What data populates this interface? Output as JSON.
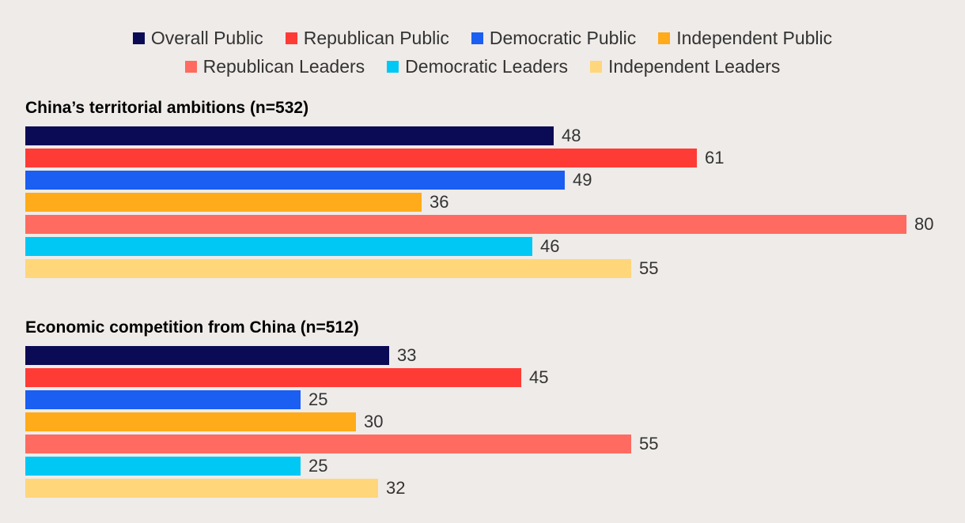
{
  "chart_data": {
    "type": "bar",
    "orientation": "horizontal",
    "legend_position": "top-center",
    "series": [
      {
        "name": "Overall Public",
        "color": "#0b0b55"
      },
      {
        "name": "Republican Public",
        "color": "#ff3b36"
      },
      {
        "name": "Democratic Public",
        "color": "#1a5ef2"
      },
      {
        "name": "Independent Public",
        "color": "#ffab1a"
      },
      {
        "name": "Republican Leaders",
        "color": "#ff6b60"
      },
      {
        "name": "Democratic Leaders",
        "color": "#00c8f5"
      },
      {
        "name": "Independent Leaders",
        "color": "#ffd67a"
      }
    ],
    "groups": [
      {
        "title": "China’s territorial ambitions (n=532)",
        "values": [
          48,
          61,
          49,
          36,
          80,
          46,
          55
        ]
      },
      {
        "title": "Economic competition from China (n=512)",
        "values": [
          33,
          45,
          25,
          30,
          55,
          25,
          32
        ]
      }
    ],
    "xlim": [
      0,
      80
    ]
  }
}
